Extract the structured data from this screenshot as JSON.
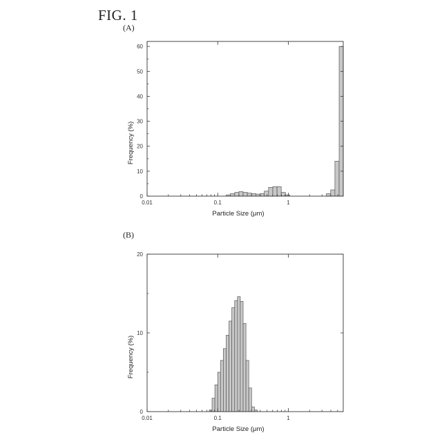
{
  "figure": {
    "title": "FIG. 1"
  },
  "chart_data": [
    {
      "panel": "(A)",
      "type": "bar",
      "xscale": "log",
      "xlim": [
        0.01,
        6
      ],
      "ylim": [
        0,
        62
      ],
      "xticks": [
        0.01,
        0.1,
        1
      ],
      "xtick_labels": [
        "0.01",
        "0.1",
        "1"
      ],
      "yticks": [
        0,
        10,
        20,
        30,
        40,
        50,
        60
      ],
      "ytick_labels": [
        "0",
        "10",
        "20",
        "30",
        "40",
        "50",
        "60"
      ],
      "xlabel": "Particle Size (μm)",
      "ylabel": "Frequency (%)",
      "grid": false,
      "bins": [
        {
          "x0": 0.132,
          "x1": 0.151,
          "y": 0.5
        },
        {
          "x0": 0.151,
          "x1": 0.174,
          "y": 1.0
        },
        {
          "x0": 0.174,
          "x1": 0.2,
          "y": 1.5
        },
        {
          "x0": 0.2,
          "x1": 0.229,
          "y": 1.8
        },
        {
          "x0": 0.229,
          "x1": 0.263,
          "y": 1.5
        },
        {
          "x0": 0.263,
          "x1": 0.302,
          "y": 1.2
        },
        {
          "x0": 0.302,
          "x1": 0.347,
          "y": 1.0
        },
        {
          "x0": 0.347,
          "x1": 0.398,
          "y": 0.8
        },
        {
          "x0": 0.398,
          "x1": 0.457,
          "y": 1.0
        },
        {
          "x0": 0.457,
          "x1": 0.525,
          "y": 2.0
        },
        {
          "x0": 0.525,
          "x1": 0.603,
          "y": 3.5
        },
        {
          "x0": 0.603,
          "x1": 0.692,
          "y": 3.8
        },
        {
          "x0": 0.692,
          "x1": 0.794,
          "y": 3.8
        },
        {
          "x0": 0.794,
          "x1": 0.912,
          "y": 1.5
        },
        {
          "x0": 0.912,
          "x1": 1.047,
          "y": 0.5
        },
        {
          "x0": 3.467,
          "x1": 3.981,
          "y": 1.0
        },
        {
          "x0": 3.981,
          "x1": 4.571,
          "y": 2.5
        },
        {
          "x0": 4.571,
          "x1": 5.248,
          "y": 14.0
        },
        {
          "x0": 5.248,
          "x1": 6.026,
          "y": 60.0
        }
      ]
    },
    {
      "panel": "(B)",
      "type": "bar",
      "xscale": "log",
      "xlim": [
        0.01,
        6
      ],
      "ylim": [
        0,
        20
      ],
      "xticks": [
        0.01,
        0.1,
        1
      ],
      "xtick_labels": [
        "0.01",
        "0.1",
        "1"
      ],
      "yticks": [
        0,
        10,
        20
      ],
      "ytick_labels": [
        "0",
        "10",
        "20"
      ],
      "xlabel": "Particle Size (μm)",
      "ylabel": "Frequency (%)",
      "grid": false,
      "bins": [
        {
          "x0": 0.0759,
          "x1": 0.0832,
          "y": 0.2
        },
        {
          "x0": 0.0832,
          "x1": 0.0912,
          "y": 1.7
        },
        {
          "x0": 0.0912,
          "x1": 0.1,
          "y": 3.4
        },
        {
          "x0": 0.1,
          "x1": 0.1096,
          "y": 5.0
        },
        {
          "x0": 0.1096,
          "x1": 0.1202,
          "y": 6.5
        },
        {
          "x0": 0.1202,
          "x1": 0.1318,
          "y": 8.0
        },
        {
          "x0": 0.1318,
          "x1": 0.1445,
          "y": 9.7
        },
        {
          "x0": 0.1445,
          "x1": 0.1585,
          "y": 11.5
        },
        {
          "x0": 0.1585,
          "x1": 0.1738,
          "y": 13.2
        },
        {
          "x0": 0.1738,
          "x1": 0.1905,
          "y": 14.1
        },
        {
          "x0": 0.1905,
          "x1": 0.2089,
          "y": 14.6
        },
        {
          "x0": 0.2089,
          "x1": 0.2291,
          "y": 14.0
        },
        {
          "x0": 0.2291,
          "x1": 0.2512,
          "y": 11.2
        },
        {
          "x0": 0.2512,
          "x1": 0.2754,
          "y": 6.5
        },
        {
          "x0": 0.2754,
          "x1": 0.302,
          "y": 3.0
        },
        {
          "x0": 0.302,
          "x1": 0.3311,
          "y": 0.6
        },
        {
          "x0": 0.3311,
          "x1": 0.3631,
          "y": 0.2
        }
      ]
    }
  ]
}
